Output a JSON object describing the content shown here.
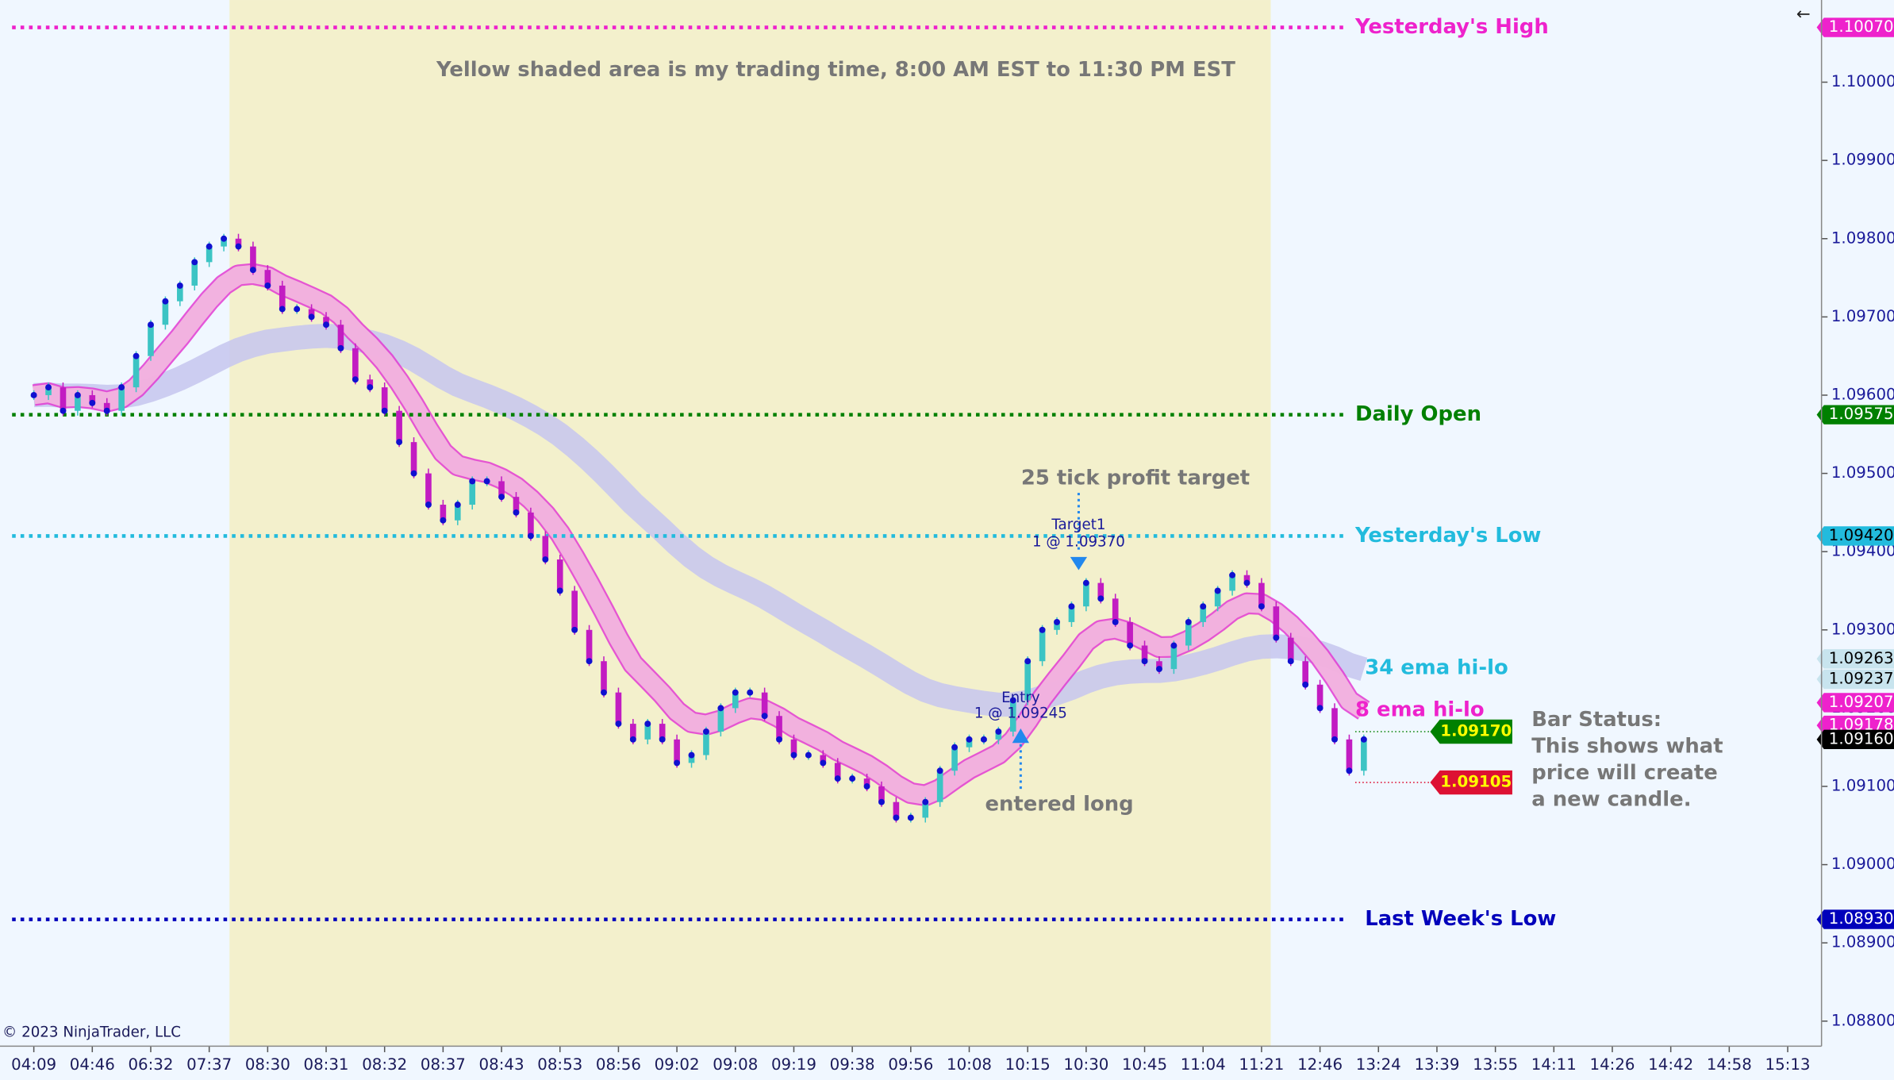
{
  "chart_data": {
    "type": "candlestick",
    "title": "Yellow shaded area is my trading time, 8:00 AM EST to 11:30 PM EST",
    "copyright": "© 2023 NinjaTrader, LLC",
    "categories": [
      "04:09",
      null,
      null,
      null,
      "04:46",
      null,
      null,
      null,
      "06:32",
      null,
      null,
      null,
      "07:37",
      null,
      null,
      null,
      "08:30",
      null,
      null,
      null,
      "08:31",
      null,
      null,
      null,
      "08:32",
      null,
      null,
      null,
      "08:37",
      null,
      null,
      null,
      "08:43",
      null,
      null,
      null,
      "08:53",
      null,
      null,
      null,
      "08:56",
      null,
      null,
      null,
      "09:02",
      null,
      null,
      null,
      "09:08",
      null,
      null,
      null,
      "09:19",
      null,
      null,
      null,
      "09:38",
      null,
      null,
      null,
      "09:56",
      null,
      null,
      null,
      "10:08",
      null,
      null,
      null,
      "10:15",
      null,
      null,
      null,
      "10:30",
      null,
      null,
      null,
      "10:45",
      null,
      null,
      null,
      "11:04",
      null,
      null,
      null,
      "11:21",
      null,
      null,
      null,
      "12:46",
      null,
      null,
      null,
      "13:24",
      null,
      null,
      null,
      "13:39",
      null,
      null,
      null,
      "13:55",
      null,
      null,
      null,
      "14:11",
      null,
      null,
      null,
      "14:26",
      null,
      null,
      null,
      "14:42",
      null,
      null,
      null,
      "14:58",
      null,
      null,
      null,
      "15:13"
    ],
    "values": [
      1.096,
      1.0961,
      1.0958,
      1.096,
      1.0959,
      1.0958,
      1.0961,
      1.0965,
      1.0969,
      1.0972,
      1.0974,
      1.0977,
      1.0979,
      1.098,
      1.0979,
      1.0976,
      1.0974,
      1.0971,
      1.0971,
      1.097,
      1.0969,
      1.0966,
      1.0962,
      1.0961,
      1.0958,
      1.0954,
      1.095,
      1.0946,
      1.0944,
      1.0946,
      1.0949,
      1.0949,
      1.0947,
      1.0945,
      1.0942,
      1.0939,
      1.0935,
      1.093,
      1.0926,
      1.0922,
      1.0918,
      1.0916,
      1.0918,
      1.0916,
      1.0913,
      1.0914,
      1.0917,
      1.092,
      1.0922,
      1.0922,
      1.0919,
      1.0916,
      1.0914,
      1.0914,
      1.0913,
      1.0911,
      1.0911,
      1.091,
      1.0908,
      1.0906,
      1.0906,
      1.0908,
      1.0912,
      1.0915,
      1.0916,
      1.0916,
      1.0917,
      1.0921,
      1.0926,
      1.093,
      1.0931,
      1.0933,
      1.0936,
      1.0934,
      1.0931,
      1.0928,
      1.0926,
      1.0925,
      1.0928,
      1.0931,
      1.0933,
      1.0935,
      1.0937,
      1.0936,
      1.0933,
      1.0929,
      1.0926,
      1.0923,
      1.092,
      1.0916,
      1.0912,
      1.0916,
      null,
      null,
      null,
      null,
      null,
      null,
      null,
      null,
      null,
      null,
      null,
      null,
      null,
      null,
      null,
      null,
      null,
      null,
      null,
      null,
      null,
      null,
      null,
      null,
      null,
      null,
      null,
      null,
      null
    ],
    "up_color": "#3cc4c4",
    "down_color": "#c21cc2",
    "close_color": "#1010d0",
    "ylim": [
      1.08768,
      1.10105
    ],
    "yticks": [
      {
        "value": 1.088,
        "label": "1.08800"
      },
      {
        "value": 1.089,
        "label": "1.08900"
      },
      {
        "value": 1.09,
        "label": "1.09000"
      },
      {
        "value": 1.091,
        "label": "1.09100"
      },
      {
        "value": 1.092,
        "label": "1.09200"
      },
      {
        "value": 1.093,
        "label": "1.09300"
      },
      {
        "value": 1.094,
        "label": "1.09400"
      },
      {
        "value": 1.095,
        "label": "1.09500"
      },
      {
        "value": 1.096,
        "label": "1.09600"
      },
      {
        "value": 1.097,
        "label": "1.09700"
      },
      {
        "value": 1.098,
        "label": "1.09800"
      },
      {
        "value": 1.099,
        "label": "1.09900"
      },
      {
        "value": 1.1,
        "label": "1.10000"
      }
    ],
    "levels": [
      {
        "name": "Yesterday's High",
        "value": 1.1007,
        "color": "#ee22cc"
      },
      {
        "name": "Daily Open",
        "value": 1.09575,
        "color": "#008000"
      },
      {
        "name": "Yesterday's Low",
        "value": 1.0942,
        "color": "#22bbdd"
      },
      {
        "name": "Last Week's Low",
        "value": 1.0893,
        "color": "#0000bb"
      }
    ],
    "price_markers": [
      {
        "value": 1.1007,
        "label": "1.10070",
        "color": "#ee22cc",
        "text_color": "#ffffff"
      },
      {
        "value": 1.09575,
        "label": "1.09575",
        "color": "#008000",
        "text_color": "#ffffff"
      },
      {
        "value": 1.0942,
        "label": "1.09420",
        "color": "#22bbdd",
        "text_color": "#000000"
      },
      {
        "value": 1.09263,
        "label": "1.09263",
        "color": "#c8e4ee",
        "text_color": "#000000"
      },
      {
        "value": 1.09237,
        "label": "1.09237",
        "color": "#c8e4ee",
        "text_color": "#000000"
      },
      {
        "value": 1.09207,
        "label": "1.09207",
        "color": "#ee22cc",
        "text_color": "#ffffff"
      },
      {
        "value": 1.09178,
        "label": "1.09178",
        "color": "#ee22cc",
        "text_color": "#ffffff"
      },
      {
        "value": 1.0916,
        "label": "1.09160",
        "color": "#000000",
        "text_color": "#ffffff"
      },
      {
        "value": 1.0893,
        "label": "1.08930",
        "color": "#0000bb",
        "text_color": "#ffffff"
      }
    ],
    "bar_status": [
      {
        "value": 1.0917,
        "label": "1.09170",
        "color": "#008000",
        "text_color": "#ffff00"
      },
      {
        "value": 1.09105,
        "label": "1.09105",
        "color": "#dd1133",
        "text_color": "#ffff00"
      }
    ],
    "bands": [
      {
        "name": "34 ema hi-lo",
        "color": "#22bbdd"
      },
      {
        "name": "8 ema hi-lo",
        "color": "#ee22cc"
      }
    ],
    "annotations": {
      "profit_target": "25 tick profit target",
      "target_name": "Target1",
      "target_order": "1 @ 1.09370",
      "entry_name": "Entry",
      "entry_order": "1 @ 1.09245",
      "entered": "entered long",
      "bar_status": [
        "Bar Status:",
        "This shows what",
        "price will create",
        "a new candle."
      ]
    }
  }
}
